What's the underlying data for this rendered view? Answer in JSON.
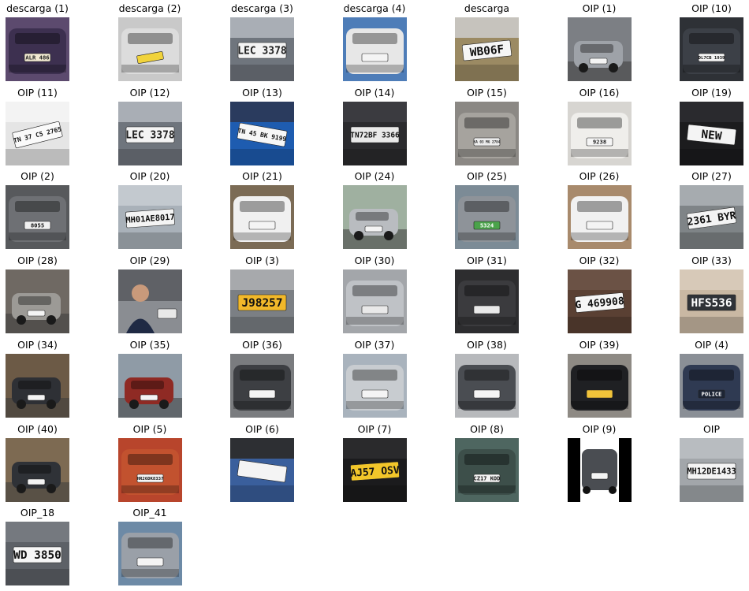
{
  "images": [
    {
      "caption": "descarga (1)",
      "plate": "ALR 486",
      "bg": "#5c4a6e",
      "car": "#3d3050",
      "plate_bg": "#f2ead2",
      "plate_fg": "#222",
      "scene": "front",
      "angle": 0
    },
    {
      "caption": "descarga (2)",
      "plate": "",
      "bg": "#c9c9c9",
      "car": "#dcdcdc",
      "plate_bg": "#f1d33b",
      "plate_fg": "#222",
      "scene": "front",
      "angle": -10
    },
    {
      "caption": "descarga (3)",
      "plate": "LEC 3378",
      "bg": "#6f757d",
      "car": "#a9aeb5",
      "plate_bg": "#f4f4f4",
      "plate_fg": "#222",
      "scene": "closeplate",
      "angle": 0
    },
    {
      "caption": "descarga (4)",
      "plate": "",
      "bg": "#4e7db8",
      "car": "#e7e7e7",
      "plate_bg": "#f4f4f4",
      "plate_fg": "#222",
      "scene": "rear",
      "angle": 0
    },
    {
      "caption": "descarga",
      "plate": "WB06F",
      "bg": "#9b8a63",
      "car": "#c6c3bd",
      "plate_bg": "#f6f6f6",
      "plate_fg": "#111",
      "scene": "closeplate",
      "angle": -6
    },
    {
      "caption": "OIP (1)",
      "plate": "",
      "bg": "#7c7f84",
      "car": "#9ea2a8",
      "plate_bg": "#f4f4f4",
      "plate_fg": "#222",
      "scene": "street",
      "angle": 0
    },
    {
      "caption": "OIP (10)",
      "plate": "DL7CB 1939",
      "bg": "#2e3136",
      "car": "#3c4047",
      "plate_bg": "#f4f4f4",
      "plate_fg": "#111",
      "scene": "front",
      "angle": 0
    },
    {
      "caption": "OIP (11)",
      "plate": "TN 37 C5 2765",
      "bg": "#e5e5e5",
      "car": "#f3f3f3",
      "plate_bg": "#fafafa",
      "plate_fg": "#111",
      "scene": "closeplate",
      "angle": -14
    },
    {
      "caption": "OIP (12)",
      "plate": "LEC 3378",
      "bg": "#6f757d",
      "car": "#a9aeb5",
      "plate_bg": "#f4f4f4",
      "plate_fg": "#222",
      "scene": "closeplate",
      "angle": 0
    },
    {
      "caption": "OIP (13)",
      "plate": "TN 45 BK 9199",
      "bg": "#1e5cb0",
      "car": "#2a3b5e",
      "plate_bg": "#f7f7f7",
      "plate_fg": "#111",
      "scene": "closeplate",
      "angle": 10
    },
    {
      "caption": "OIP (14)",
      "plate": "TN72BF 3366",
      "bg": "#2b2b2e",
      "car": "#3b3b40",
      "plate_bg": "#e9e9e9",
      "plate_fg": "#111",
      "scene": "closeplate",
      "angle": 0
    },
    {
      "caption": "OIP (15)",
      "plate": "KA 03 MG 2784",
      "bg": "#8b8884",
      "car": "#a6a39e",
      "plate_bg": "#ececec",
      "plate_fg": "#222",
      "scene": "rear",
      "angle": 0
    },
    {
      "caption": "OIP (16)",
      "plate": "9238",
      "bg": "#d7d5d1",
      "car": "#efeeeb",
      "plate_bg": "#f5f5f5",
      "plate_fg": "#222",
      "scene": "front",
      "angle": 0
    },
    {
      "caption": "OIP (19)",
      "plate": "NEW",
      "bg": "#1c1c1e",
      "car": "#2a2a2e",
      "plate_bg": "#f4f4f4",
      "plate_fg": "#111",
      "scene": "closeplate",
      "angle": 6
    },
    {
      "caption": "OIP (2)",
      "plate": "8055",
      "bg": "#57595c",
      "car": "#6e7074",
      "plate_bg": "#f1f1f1",
      "plate_fg": "#111",
      "scene": "front",
      "angle": 0
    },
    {
      "caption": "OIP (20)",
      "plate": "MH01AE8017",
      "bg": "#a9b1b9",
      "car": "#c3c9cf",
      "plate_bg": "#f4f4f4",
      "plate_fg": "#111",
      "scene": "closeplate",
      "angle": -4
    },
    {
      "caption": "OIP (21)",
      "plate": "",
      "bg": "#7b6b55",
      "car": "#f0f0f0",
      "plate_bg": "#f4f4f4",
      "plate_fg": "#222",
      "scene": "rear",
      "angle": 0
    },
    {
      "caption": "OIP (24)",
      "plate": "",
      "bg": "#9fb0a0",
      "car": "#b9bcc0",
      "plate_bg": "#f4f4f4",
      "plate_fg": "#222",
      "scene": "side",
      "angle": 0
    },
    {
      "caption": "OIP (25)",
      "plate": "5324",
      "bg": "#7c8b96",
      "car": "#8e9399",
      "plate_bg": "#4aa34a",
      "plate_fg": "#fff",
      "scene": "rear",
      "angle": 0
    },
    {
      "caption": "OIP (26)",
      "plate": "",
      "bg": "#a88a6c",
      "car": "#f1f1f1",
      "plate_bg": "#f4f4f4",
      "plate_fg": "#222",
      "scene": "rear",
      "angle": 0
    },
    {
      "caption": "OIP (27)",
      "plate": "2361 BYR",
      "bg": "#7f8487",
      "car": "#a6abaf",
      "plate_bg": "#f4f4f4",
      "plate_fg": "#111",
      "scene": "closeplate",
      "angle": -8
    },
    {
      "caption": "OIP (28)",
      "plate": "",
      "bg": "#6f6963",
      "car": "#9c9a96",
      "plate_bg": "#f4f4f4",
      "plate_fg": "#222",
      "scene": "side",
      "angle": 0
    },
    {
      "caption": "OIP (29)",
      "plate": "",
      "bg": "#5f6166",
      "car": "#8a8d92",
      "plate_bg": "#e8e8e8",
      "plate_fg": "#222",
      "scene": "person",
      "angle": 0
    },
    {
      "caption": "OIP (3)",
      "plate": "J98257",
      "bg": "#7b7f84",
      "car": "#a7a9ac",
      "plate_bg": "#f1b82a",
      "plate_fg": "#111",
      "scene": "closeplate",
      "angle": 0
    },
    {
      "caption": "OIP (30)",
      "plate": "",
      "bg": "#a3a6aa",
      "car": "#bfc2c6",
      "plate_bg": "#e9e9e9",
      "plate_fg": "#222",
      "scene": "rear",
      "angle": 0
    },
    {
      "caption": "OIP (31)",
      "plate": "",
      "bg": "#2d2d2f",
      "car": "#3b3b3e",
      "plate_bg": "#e9e9e9",
      "plate_fg": "#222",
      "scene": "rear",
      "angle": 0
    },
    {
      "caption": "OIP (32)",
      "plate": "G 469908",
      "bg": "#5a4033",
      "car": "#6b5245",
      "plate_bg": "#f6f6f6",
      "plate_fg": "#111",
      "scene": "closeplate",
      "angle": -5
    },
    {
      "caption": "OIP (33)",
      "plate": "HFS536",
      "bg": "#c9b8a3",
      "car": "#d7c9b8",
      "plate_bg": "#303338",
      "plate_fg": "#fff",
      "scene": "closeplate",
      "angle": 0
    },
    {
      "caption": "OIP (34)",
      "plate": "",
      "bg": "#6c5a46",
      "car": "#2e3035",
      "plate_bg": "#f4f4f4",
      "plate_fg": "#222",
      "scene": "side",
      "angle": 0
    },
    {
      "caption": "OIP (35)",
      "plate": "",
      "bg": "#8f9ba6",
      "car": "#8f2a24",
      "plate_bg": "#f4f4f4",
      "plate_fg": "#222",
      "scene": "side",
      "angle": 0
    },
    {
      "caption": "OIP (36)",
      "plate": "",
      "bg": "#7a7c7f",
      "car": "#3d3f43",
      "plate_bg": "#f4f4f4",
      "plate_fg": "#222",
      "scene": "front",
      "angle": 0
    },
    {
      "caption": "OIP (37)",
      "plate": "",
      "bg": "#a9b3bd",
      "car": "#c8ccd0",
      "plate_bg": "#f4f4f4",
      "plate_fg": "#222",
      "scene": "rear",
      "angle": 0
    },
    {
      "caption": "OIP (38)",
      "plate": "",
      "bg": "#b7b9bc",
      "car": "#4a4d52",
      "plate_bg": "#f4f4f4",
      "plate_fg": "#222",
      "scene": "rear",
      "angle": 0
    },
    {
      "caption": "OIP (39)",
      "plate": "",
      "bg": "#8e8a84",
      "car": "#1f2023",
      "plate_bg": "#f1c33a",
      "plate_fg": "#222",
      "scene": "rear",
      "angle": 0
    },
    {
      "caption": "OIP (4)",
      "plate": "POLICE",
      "bg": "#8a8f96",
      "car": "#2f3a52",
      "plate_bg": "#1d2535",
      "plate_fg": "#fff",
      "scene": "rear",
      "angle": 0
    },
    {
      "caption": "OIP (40)",
      "plate": "",
      "bg": "#7d6a52",
      "car": "#2f3237",
      "plate_bg": "#f4f4f4",
      "plate_fg": "#222",
      "scene": "side",
      "angle": 0
    },
    {
      "caption": "OIP (5)",
      "plate": "HR26DK8337",
      "bg": "#b8452c",
      "car": "#c2522f",
      "plate_bg": "#f5f5f5",
      "plate_fg": "#111",
      "scene": "front",
      "angle": 0
    },
    {
      "caption": "OIP (6)",
      "plate": "",
      "bg": "#3a5f9c",
      "car": "#2d2f33",
      "plate_bg": "#f4f4f4",
      "plate_fg": "#222",
      "scene": "closeplate",
      "angle": 8
    },
    {
      "caption": "OIP (7)",
      "plate": "AJ57 OSV",
      "bg": "#1b1b1d",
      "car": "#2a2a2c",
      "plate_bg": "#f2c62a",
      "plate_fg": "#111",
      "scene": "closeplate",
      "angle": -4
    },
    {
      "caption": "OIP (8)",
      "plate": "CZ17 KOD",
      "bg": "#4e6660",
      "car": "#3d4f4a",
      "plate_bg": "#f4f4f4",
      "plate_fg": "#111",
      "scene": "front",
      "angle": 0
    },
    {
      "caption": "OIP (9)",
      "plate": "",
      "bg": "#000000",
      "car": "#4a4d52",
      "plate_bg": "#f4f4f4",
      "plate_fg": "#222",
      "scene": "rearnarrow",
      "angle": 0
    },
    {
      "caption": "OIP",
      "plate": "MH12DE1433",
      "bg": "#a2a6aa",
      "car": "#b8bcc0",
      "plate_bg": "#f4f4f4",
      "plate_fg": "#111",
      "scene": "closeplate",
      "angle": 0
    },
    {
      "caption": "OIP_18",
      "plate": "WD 3850",
      "bg": "#5d6167",
      "car": "#75797f",
      "plate_bg": "#f6f6f6",
      "plate_fg": "#111",
      "scene": "closeplate",
      "angle": 0
    },
    {
      "caption": "OIP_41",
      "plate": "",
      "bg": "#6d8aa6",
      "car": "#9aa0a8",
      "plate_bg": "#f4f4f4",
      "plate_fg": "#222",
      "scene": "front",
      "angle": 0
    }
  ]
}
